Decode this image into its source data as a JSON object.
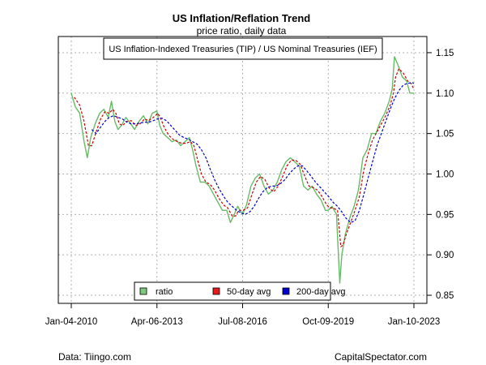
{
  "chart_data": {
    "type": "line",
    "title": "US Inflation/Reflation Trend",
    "subtitle": "price ratio, daily data",
    "series_label": "US Inflation-Indexed Treasuries (TIP) / US Nominal Treasuries (IEF)",
    "x_ticks": [
      "Jan-04-2010",
      "Apr-06-2013",
      "Jul-08-2016",
      "Oct-09-2019",
      "Jan-10-2023"
    ],
    "x_range": [
      "2010-01-04",
      "2023-01-10"
    ],
    "y_ticks": [
      "0.85",
      "0.90",
      "0.95",
      "1.00",
      "1.05",
      "1.10",
      "1.15"
    ],
    "ylim": [
      0.84,
      1.17
    ],
    "grid": true,
    "legend_position": "bottom",
    "legend": [
      {
        "label": "ratio",
        "color": "#7fc97f"
      },
      {
        "label": "50-day avg",
        "color": "#e41a1c"
      },
      {
        "label": "200-day avg",
        "color": "#0000cc"
      }
    ],
    "series": [
      {
        "name": "ratio",
        "color": "#66bb66",
        "x": [
          "2010-01-04",
          "2010-03-01",
          "2010-05-01",
          "2010-07-01",
          "2010-08-15",
          "2010-10-01",
          "2010-12-01",
          "2011-02-01",
          "2011-04-01",
          "2011-06-01",
          "2011-07-15",
          "2011-09-01",
          "2011-10-15",
          "2011-12-01",
          "2012-02-01",
          "2012-04-01",
          "2012-06-01",
          "2012-08-01",
          "2012-10-01",
          "2012-12-01",
          "2013-02-01",
          "2013-04-06",
          "2013-05-15",
          "2013-07-01",
          "2013-09-01",
          "2013-11-01",
          "2014-01-01",
          "2014-03-01",
          "2014-05-01",
          "2014-07-01",
          "2014-08-15",
          "2014-10-01",
          "2014-12-01",
          "2015-02-01",
          "2015-04-01",
          "2015-06-01",
          "2015-08-01",
          "2015-10-01",
          "2015-12-01",
          "2016-01-20",
          "2016-03-15",
          "2016-05-01",
          "2016-07-08",
          "2016-09-01",
          "2016-11-01",
          "2017-01-01",
          "2017-03-01",
          "2017-05-01",
          "2017-07-01",
          "2017-09-01",
          "2017-11-01",
          "2018-01-01",
          "2018-03-01",
          "2018-05-01",
          "2018-07-01",
          "2018-09-01",
          "2018-11-01",
          "2019-01-01",
          "2019-03-01",
          "2019-05-01",
          "2019-07-01",
          "2019-09-01",
          "2019-10-09",
          "2019-12-01",
          "2020-02-01",
          "2020-03-18",
          "2020-04-15",
          "2020-06-01",
          "2020-08-01",
          "2020-10-01",
          "2020-12-01",
          "2021-02-01",
          "2021-04-01",
          "2021-06-01",
          "2021-08-01",
          "2021-10-01",
          "2021-12-01",
          "2022-02-01",
          "2022-03-15",
          "2022-04-15",
          "2022-06-01",
          "2022-08-01",
          "2022-10-01",
          "2022-11-15",
          "2023-01-10"
        ],
        "y": [
          1.1,
          1.083,
          1.075,
          1.04,
          1.02,
          1.045,
          1.062,
          1.075,
          1.08,
          1.07,
          1.09,
          1.065,
          1.055,
          1.06,
          1.07,
          1.063,
          1.055,
          1.065,
          1.072,
          1.062,
          1.075,
          1.078,
          1.06,
          1.05,
          1.045,
          1.04,
          1.042,
          1.035,
          1.04,
          1.045,
          1.03,
          1.01,
          0.99,
          0.99,
          0.985,
          0.975,
          0.965,
          0.955,
          0.955,
          0.94,
          0.95,
          0.96,
          0.95,
          0.962,
          0.985,
          0.995,
          1.0,
          0.985,
          0.975,
          0.98,
          0.99,
          1.005,
          1.015,
          1.02,
          1.015,
          1.01,
          0.985,
          0.98,
          0.985,
          0.975,
          0.968,
          0.955,
          0.955,
          0.96,
          0.95,
          0.865,
          0.9,
          0.925,
          0.945,
          0.96,
          0.98,
          1.02,
          1.03,
          1.05,
          1.05,
          1.065,
          1.075,
          1.09,
          1.105,
          1.145,
          1.135,
          1.12,
          1.115,
          1.1,
          1.1
        ]
      },
      {
        "name": "50-day avg",
        "color": "#cc0000",
        "x": [
          "2010-02-15",
          "2010-05-01",
          "2010-07-01",
          "2010-08-30",
          "2010-10-15",
          "2010-12-15",
          "2011-02-15",
          "2011-04-15",
          "2011-06-15",
          "2011-08-01",
          "2011-09-15",
          "2011-11-01",
          "2011-12-15",
          "2012-02-15",
          "2012-04-15",
          "2012-06-15",
          "2012-08-15",
          "2012-10-15",
          "2012-12-15",
          "2013-02-15",
          "2013-04-20",
          "2013-06-01",
          "2013-07-15",
          "2013-09-15",
          "2013-11-15",
          "2014-01-15",
          "2014-03-15",
          "2014-05-15",
          "2014-07-15",
          "2014-09-01",
          "2014-10-15",
          "2014-12-15",
          "2015-02-15",
          "2015-04-15",
          "2015-06-15",
          "2015-08-15",
          "2015-10-15",
          "2015-12-15",
          "2016-02-15",
          "2016-04-01",
          "2016-05-15",
          "2016-07-15",
          "2016-09-15",
          "2016-11-15",
          "2017-01-15",
          "2017-03-15",
          "2017-05-15",
          "2017-07-15",
          "2017-09-15",
          "2017-11-15",
          "2018-01-15",
          "2018-03-15",
          "2018-05-15",
          "2018-07-15",
          "2018-09-15",
          "2018-11-15",
          "2019-01-15",
          "2019-03-15",
          "2019-05-15",
          "2019-07-15",
          "2019-09-15",
          "2019-11-01",
          "2019-12-15",
          "2020-02-15",
          "2020-04-01",
          "2020-05-01",
          "2020-06-15",
          "2020-08-15",
          "2020-10-15",
          "2020-12-15",
          "2021-02-15",
          "2021-04-15",
          "2021-06-15",
          "2021-08-15",
          "2021-10-15",
          "2021-12-15",
          "2022-02-15",
          "2022-04-01",
          "2022-05-01",
          "2022-06-15",
          "2022-08-15",
          "2022-10-15",
          "2022-12-01",
          "2023-01-10"
        ],
        "y": [
          1.095,
          1.085,
          1.065,
          1.035,
          1.035,
          1.052,
          1.068,
          1.077,
          1.075,
          1.08,
          1.075,
          1.062,
          1.06,
          1.065,
          1.066,
          1.06,
          1.062,
          1.068,
          1.066,
          1.07,
          1.075,
          1.068,
          1.058,
          1.048,
          1.043,
          1.04,
          1.038,
          1.038,
          1.04,
          1.035,
          1.02,
          1.0,
          0.99,
          0.987,
          0.98,
          0.97,
          0.962,
          0.958,
          0.948,
          0.948,
          0.955,
          0.955,
          0.958,
          0.975,
          0.99,
          0.997,
          0.993,
          0.982,
          0.978,
          0.985,
          0.997,
          1.01,
          1.017,
          1.017,
          1.012,
          0.998,
          0.985,
          0.983,
          0.98,
          0.972,
          0.962,
          0.958,
          0.958,
          0.955,
          0.91,
          0.912,
          0.925,
          0.94,
          0.955,
          0.972,
          1.005,
          1.025,
          1.042,
          1.052,
          1.062,
          1.072,
          1.085,
          1.1,
          1.12,
          1.13,
          1.125,
          1.115,
          1.112,
          1.105
        ]
      },
      {
        "name": "200-day avg",
        "color": "#0000cc",
        "x": [
          "2010-10-15",
          "2010-12-15",
          "2011-02-15",
          "2011-04-15",
          "2011-06-15",
          "2011-08-15",
          "2011-10-15",
          "2011-12-15",
          "2012-02-15",
          "2012-04-15",
          "2012-06-15",
          "2012-08-15",
          "2012-10-15",
          "2012-12-15",
          "2013-02-15",
          "2013-04-15",
          "2013-06-15",
          "2013-08-15",
          "2013-10-15",
          "2013-12-15",
          "2014-02-15",
          "2014-04-15",
          "2014-06-15",
          "2014-08-15",
          "2014-10-15",
          "2014-12-15",
          "2015-02-15",
          "2015-04-15",
          "2015-06-15",
          "2015-08-15",
          "2015-10-15",
          "2015-12-15",
          "2016-02-15",
          "2016-04-15",
          "2016-06-15",
          "2016-08-15",
          "2016-10-15",
          "2016-12-15",
          "2017-02-15",
          "2017-04-15",
          "2017-06-15",
          "2017-08-15",
          "2017-10-15",
          "2017-12-15",
          "2018-02-15",
          "2018-04-15",
          "2018-06-15",
          "2018-08-15",
          "2018-10-15",
          "2018-12-15",
          "2019-02-15",
          "2019-04-15",
          "2019-06-15",
          "2019-08-15",
          "2019-10-15",
          "2019-12-15",
          "2020-02-15",
          "2020-04-15",
          "2020-06-15",
          "2020-08-15",
          "2020-10-15",
          "2020-12-15",
          "2021-02-15",
          "2021-04-15",
          "2021-06-15",
          "2021-08-15",
          "2021-10-15",
          "2021-12-15",
          "2022-02-15",
          "2022-04-15",
          "2022-06-15",
          "2022-08-15",
          "2022-10-15",
          "2022-12-15",
          "2023-01-10"
        ],
        "y": [
          1.055,
          1.05,
          1.058,
          1.065,
          1.07,
          1.072,
          1.07,
          1.068,
          1.064,
          1.062,
          1.062,
          1.063,
          1.064,
          1.064,
          1.066,
          1.068,
          1.069,
          1.066,
          1.06,
          1.054,
          1.048,
          1.045,
          1.043,
          1.04,
          1.037,
          1.03,
          1.02,
          1.006,
          0.993,
          0.982,
          0.973,
          0.965,
          0.96,
          0.955,
          0.952,
          0.95,
          0.953,
          0.96,
          0.97,
          0.978,
          0.983,
          0.985,
          0.985,
          0.988,
          0.993,
          1.0,
          1.006,
          1.01,
          1.01,
          1.004,
          0.997,
          0.99,
          0.984,
          0.978,
          0.972,
          0.965,
          0.96,
          0.953,
          0.945,
          0.94,
          0.942,
          0.955,
          0.975,
          0.995,
          1.015,
          1.035,
          1.05,
          1.065,
          1.08,
          1.093,
          1.103,
          1.11,
          1.112,
          1.113,
          1.112
        ]
      }
    ]
  },
  "footer": {
    "left": "Data: Tiingo.com",
    "right": "CapitalSpectator.com"
  }
}
